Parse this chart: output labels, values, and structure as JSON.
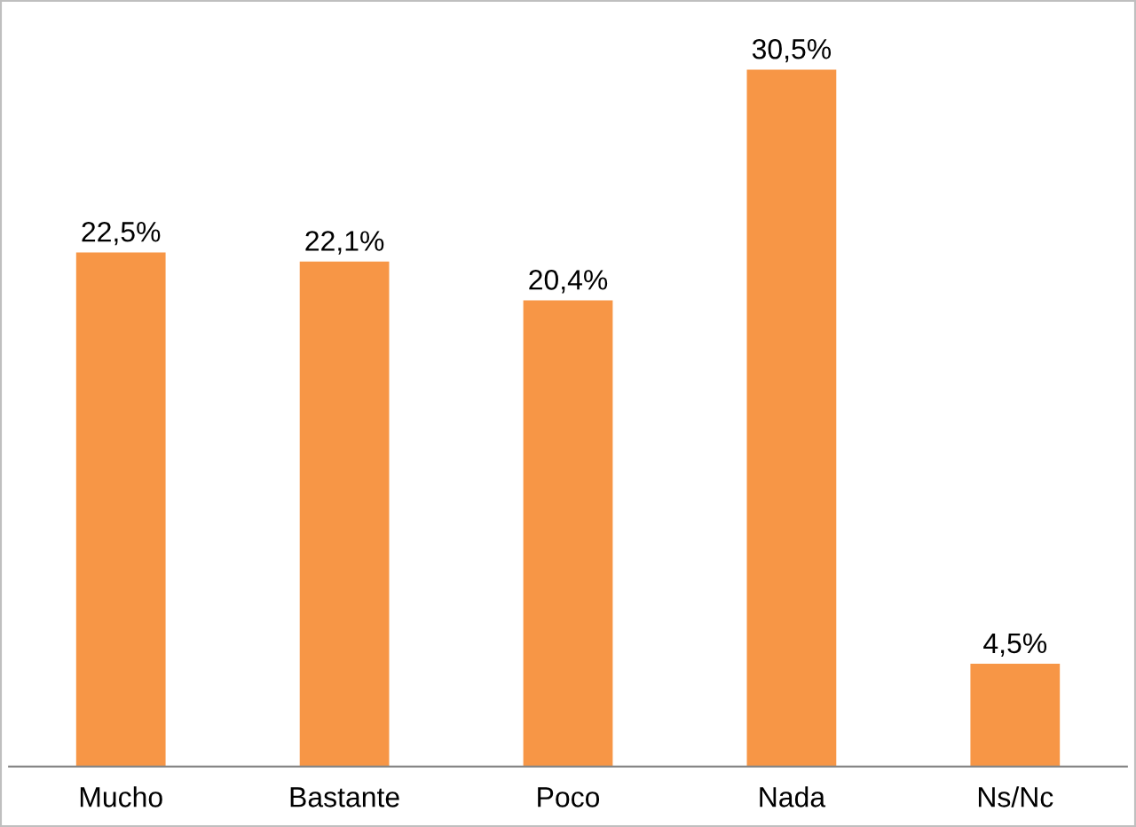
{
  "chart_data": {
    "type": "bar",
    "categories": [
      "Mucho",
      "Bastante",
      "Poco",
      "Nada",
      "Ns/Nc"
    ],
    "values": [
      22.5,
      22.1,
      20.4,
      30.5,
      4.5
    ],
    "value_labels": [
      "22,5%",
      "22,1%",
      "20,4%",
      "30,5%",
      "4,5%"
    ],
    "color": "#f79646",
    "grid": false,
    "legend": false
  }
}
